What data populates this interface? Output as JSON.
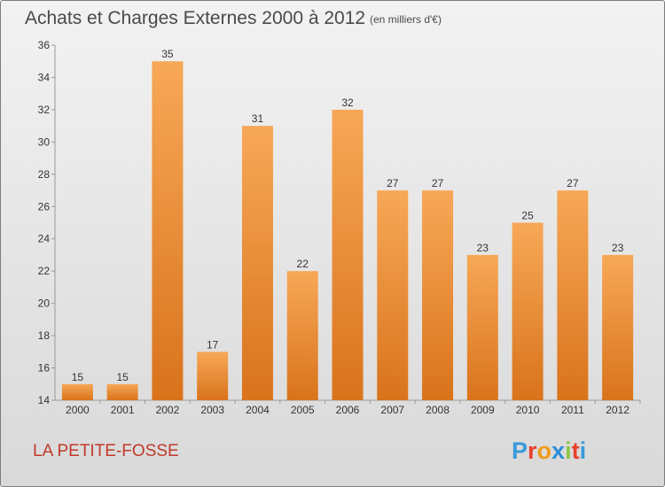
{
  "chart_data": {
    "type": "bar",
    "title": "Achats et Charges Externes 2000 à 2012",
    "subtitle": "(en milliers d'€)",
    "categories": [
      "2000",
      "2001",
      "2002",
      "2003",
      "2004",
      "2005",
      "2006",
      "2007",
      "2008",
      "2009",
      "2010",
      "2011",
      "2012"
    ],
    "values": [
      15,
      15,
      35,
      17,
      31,
      22,
      32,
      27,
      27,
      23,
      25,
      27,
      23
    ],
    "ylim": [
      14,
      36
    ],
    "yticks": [
      14,
      16,
      18,
      20,
      22,
      24,
      26,
      28,
      30,
      32,
      34,
      36
    ],
    "grid": false,
    "bar_color_top": "#f7a857",
    "bar_color_bottom": "#d9731c"
  },
  "place_name": "LA PETITE-FOSSE",
  "brand": {
    "text": "Proxiti",
    "colors": [
      "#3a9ad9",
      "#e8412c",
      "#f29b1d",
      "#2b8fd6",
      "#8dc63f",
      "#e8412c",
      "#3a9ad9"
    ]
  }
}
